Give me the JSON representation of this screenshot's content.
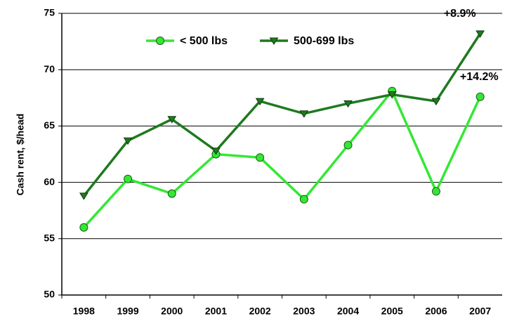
{
  "chart_data": {
    "type": "line",
    "y_label": "Cash rent, $/head",
    "categories": [
      "1998",
      "1999",
      "2000",
      "2001",
      "2002",
      "2003",
      "2004",
      "2005",
      "2006",
      "2007"
    ],
    "series": [
      {
        "name": "< 500 lbs",
        "color": "#33e833",
        "values": [
          56.0,
          60.3,
          59.0,
          62.5,
          62.2,
          58.5,
          63.3,
          68.1,
          59.2,
          67.6
        ]
      },
      {
        "name": "500-699 lbs",
        "color": "#1e7a1e",
        "values": [
          58.8,
          63.7,
          65.6,
          62.8,
          67.2,
          66.1,
          67.0,
          67.8,
          67.2,
          73.2
        ]
      }
    ],
    "annotations": [
      "+14.2%",
      "+8.9%"
    ],
    "ylim": [
      50,
      75
    ],
    "yticks": [
      50,
      55,
      60,
      65,
      70,
      75
    ],
    "grid": true
  }
}
